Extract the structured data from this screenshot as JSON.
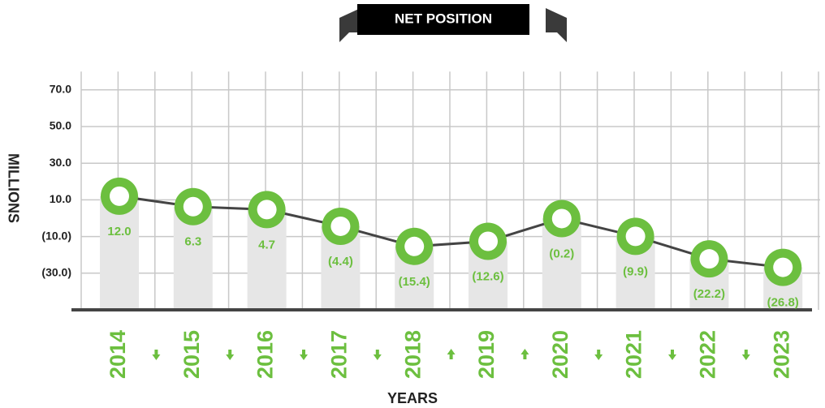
{
  "chart_data": {
    "type": "line",
    "title": "NET POSITION",
    "x_label": "YEARS",
    "y_label": "MILLIONS",
    "categories": [
      "2014",
      "2015",
      "2016",
      "2017",
      "2018",
      "2019",
      "2020",
      "2021",
      "2022",
      "2023"
    ],
    "values": [
      12.0,
      6.3,
      4.7,
      -4.4,
      -15.4,
      -12.6,
      -0.2,
      -9.9,
      -22.2,
      -26.8
    ],
    "value_labels": [
      "12.0",
      "6.3",
      "4.7",
      "(4.4)",
      "(15.4)",
      "(12.6)",
      "(0.2)",
      "(9.9)",
      "(22.2)",
      "(26.8)"
    ],
    "color": "#6cbf3f",
    "line_color": "#444444",
    "ylim": [
      -50,
      80
    ],
    "yticks": [
      {
        "value": -30,
        "label": "(30.0)"
      },
      {
        "value": -10,
        "label": "(10.0)"
      },
      {
        "value": 10,
        "label": "10.0"
      },
      {
        "value": 30,
        "label": "30.0"
      },
      {
        "value": 50,
        "label": "50.0"
      },
      {
        "value": 70,
        "label": "70.0"
      }
    ],
    "grid": true
  }
}
